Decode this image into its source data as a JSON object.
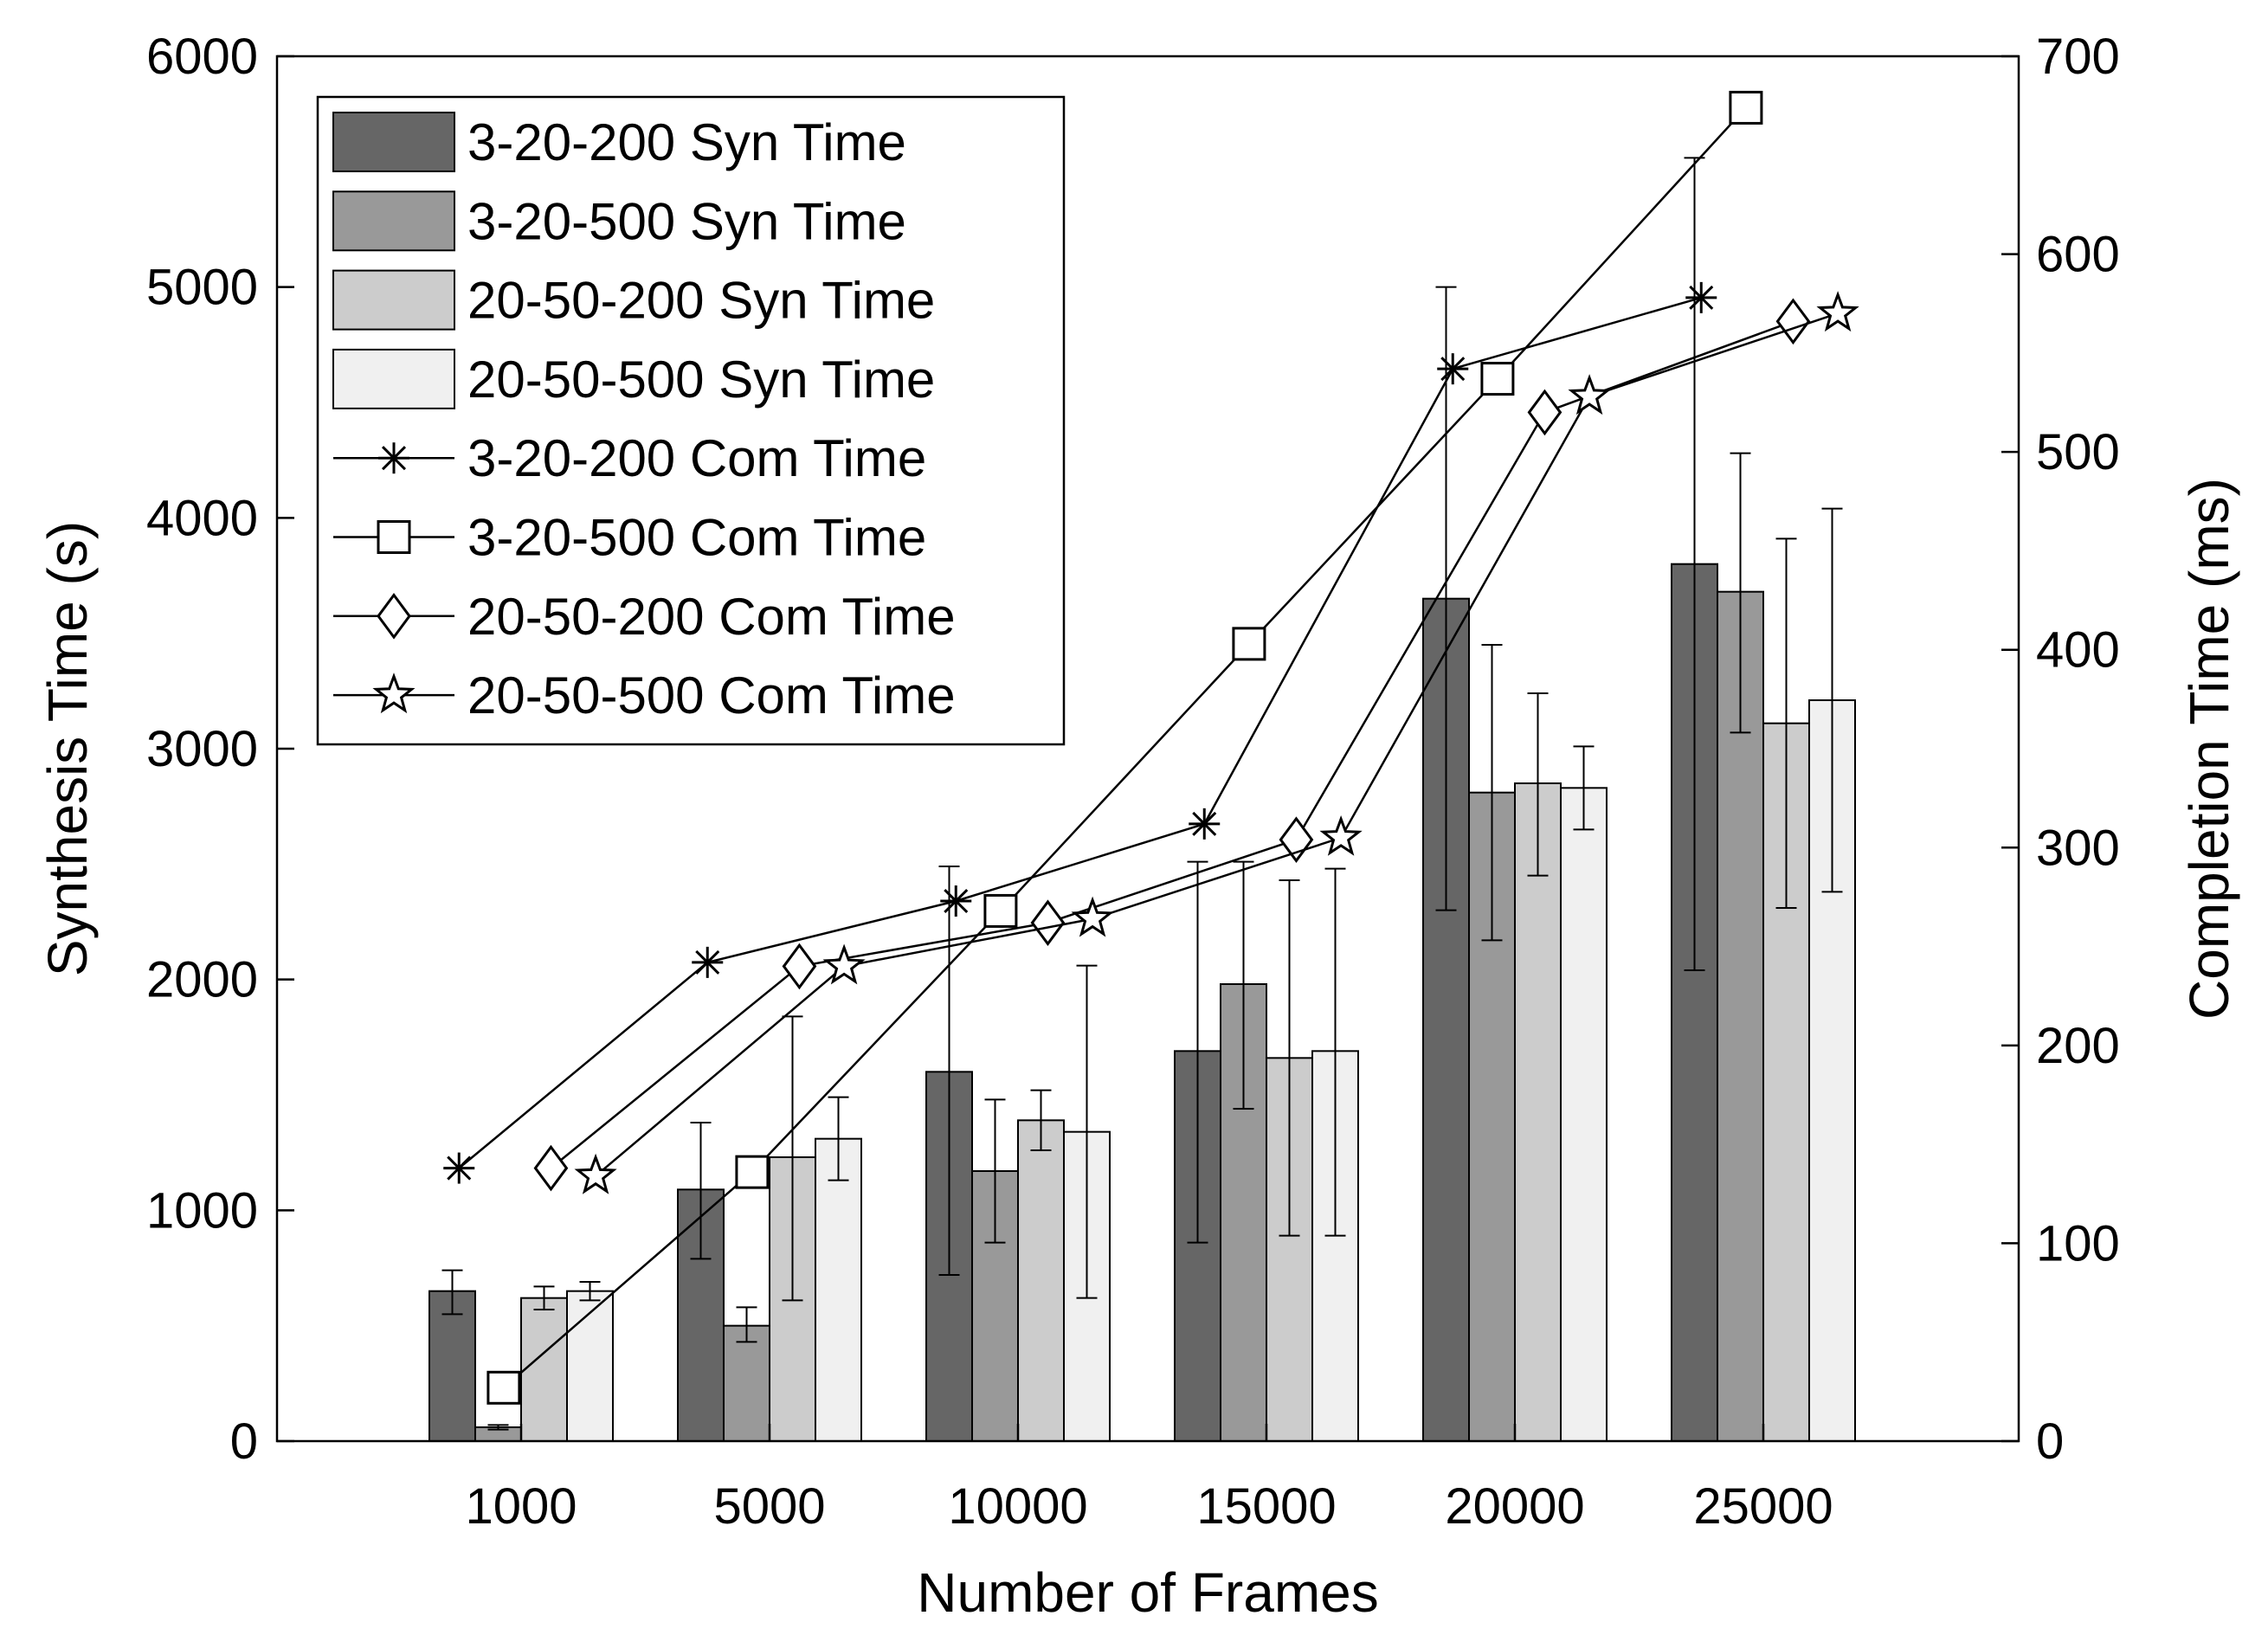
{
  "chart_data": {
    "type": "bar",
    "title": "",
    "xlabel": "Number of Frames",
    "ylabel": "Synthesis Time (s)",
    "y2label": "Completion Time (ms)",
    "categories": [
      "1000",
      "5000",
      "10000",
      "15000",
      "20000",
      "25000"
    ],
    "ylim": [
      0,
      6000
    ],
    "y2lim": [
      0,
      700
    ],
    "yticks": [
      "0",
      "1000",
      "2000",
      "3000",
      "4000",
      "5000",
      "6000"
    ],
    "y2ticks": [
      "0",
      "100",
      "200",
      "300",
      "400",
      "500",
      "600",
      "700"
    ],
    "grid": false,
    "legend_position": "top-left",
    "bar_series": [
      {
        "name": "3-20-200 Syn Time",
        "color": "#666666",
        "values": [
          650,
          1090,
          1600,
          1690,
          3650,
          3800
        ],
        "err_low": [
          550,
          790,
          720,
          860,
          2300,
          2040
        ],
        "err_high": [
          740,
          1380,
          2490,
          2510,
          5000,
          5560
        ]
      },
      {
        "name": "3-20-500 Syn Time",
        "color": "#999999",
        "values": [
          60,
          500,
          1170,
          1980,
          2810,
          3680
        ],
        "err_low": [
          50,
          430,
          860,
          1440,
          2170,
          3070
        ],
        "err_high": [
          70,
          580,
          1480,
          2510,
          3450,
          4280
        ]
      },
      {
        "name": "20-50-200 Syn Time",
        "color": "#cccccc",
        "values": [
          620,
          1230,
          1390,
          1660,
          2850,
          3110
        ],
        "err_low": [
          570,
          610,
          1260,
          890,
          2450,
          2310
        ],
        "err_high": [
          670,
          1840,
          1520,
          2430,
          3240,
          3910
        ]
      },
      {
        "name": "20-50-500 Syn Time",
        "color": "#f0f0f0",
        "values": [
          650,
          1310,
          1340,
          1690,
          2830,
          3210
        ],
        "err_low": [
          610,
          1130,
          620,
          890,
          2650,
          2380
        ],
        "err_high": [
          690,
          1490,
          2060,
          2480,
          3010,
          4040
        ]
      }
    ],
    "line_series": [
      {
        "name": "3-20-200 Com Time",
        "marker": "asterisk",
        "x": [
          -0.25,
          0.75,
          1.75,
          2.75,
          3.75,
          4.75
        ],
        "values": [
          138,
          242,
          273,
          312,
          542,
          578
        ]
      },
      {
        "name": "3-20-500 Com Time",
        "marker": "square",
        "x": [
          -0.07,
          0.93,
          1.93,
          2.93,
          3.93,
          4.93
        ],
        "values": [
          27,
          136,
          268,
          403,
          537,
          674
        ]
      },
      {
        "name": "20-50-200 Com Time",
        "marker": "diamond",
        "x": [
          0.12,
          1.12,
          2.12,
          3.12,
          4.12,
          5.12
        ],
        "values": [
          138,
          240,
          262,
          304,
          520,
          566
        ]
      },
      {
        "name": "20-50-500 Com Time",
        "marker": "star",
        "x": [
          0.3,
          1.3,
          2.3,
          3.3,
          4.3,
          5.3
        ],
        "values": [
          134,
          240,
          264,
          305,
          528,
          570
        ]
      }
    ]
  }
}
